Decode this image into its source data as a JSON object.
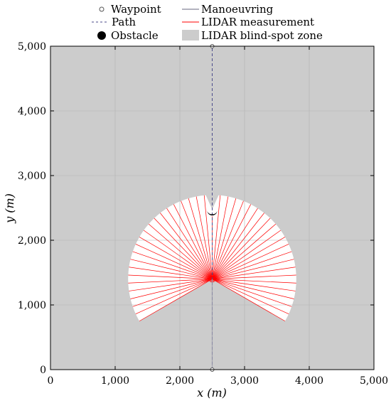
{
  "chart_data": {
    "type": "scatter",
    "xlabel": "x (m)",
    "ylabel": "y (m)",
    "xlim": [
      0,
      5000
    ],
    "ylim": [
      0,
      5000
    ],
    "x_ticks": [
      0,
      1000,
      2000,
      3000,
      4000,
      5000
    ],
    "y_ticks": [
      0,
      1000,
      2000,
      3000,
      4000,
      5000
    ],
    "x_tick_labels": [
      "0",
      "1,000",
      "2,000",
      "3,000",
      "4,000",
      "5,000"
    ],
    "y_tick_labels": [
      "0",
      "1,000",
      "2,000",
      "3,000",
      "4,000",
      "5,000"
    ],
    "grid": true,
    "legend_position": "top",
    "legend": [
      {
        "label": "Waypoint",
        "symbol": "open-circle"
      },
      {
        "label": "Manoeuvring",
        "symbol": "solid-line"
      },
      {
        "label": "Path",
        "symbol": "dashed-line"
      },
      {
        "label": "LIDAR measurement",
        "symbol": "red-line"
      },
      {
        "label": "Obstacle",
        "symbol": "filled-circle"
      },
      {
        "label": "LIDAR blind-spot zone",
        "symbol": "gray-patch"
      }
    ],
    "waypoints": [
      {
        "x": 2500,
        "y": 0
      },
      {
        "x": 2500,
        "y": 5000
      }
    ],
    "path": {
      "x": [
        2500,
        2500
      ],
      "y": [
        0,
        5000
      ]
    },
    "manoeuvring": {
      "x": [
        2500,
        2500
      ],
      "y": [
        0,
        1400
      ]
    },
    "vessel_position": {
      "x": 2500,
      "y": 1400
    },
    "lidar": {
      "range": 1300,
      "start_angle_deg": -30,
      "end_angle_deg": 210,
      "num_rays": 45
    },
    "obstacle": {
      "x": 2500,
      "y": 2430,
      "radius": 60
    }
  },
  "colors": {
    "background": "#cccccc",
    "visible_zone": "#ffffff",
    "lidar": "#ff0000",
    "path": "#4a4a8a",
    "manoeuvring": "#9a9aaa",
    "obstacle": "#000000",
    "grid": "#b3b3b3",
    "waypoint": "#555555"
  }
}
